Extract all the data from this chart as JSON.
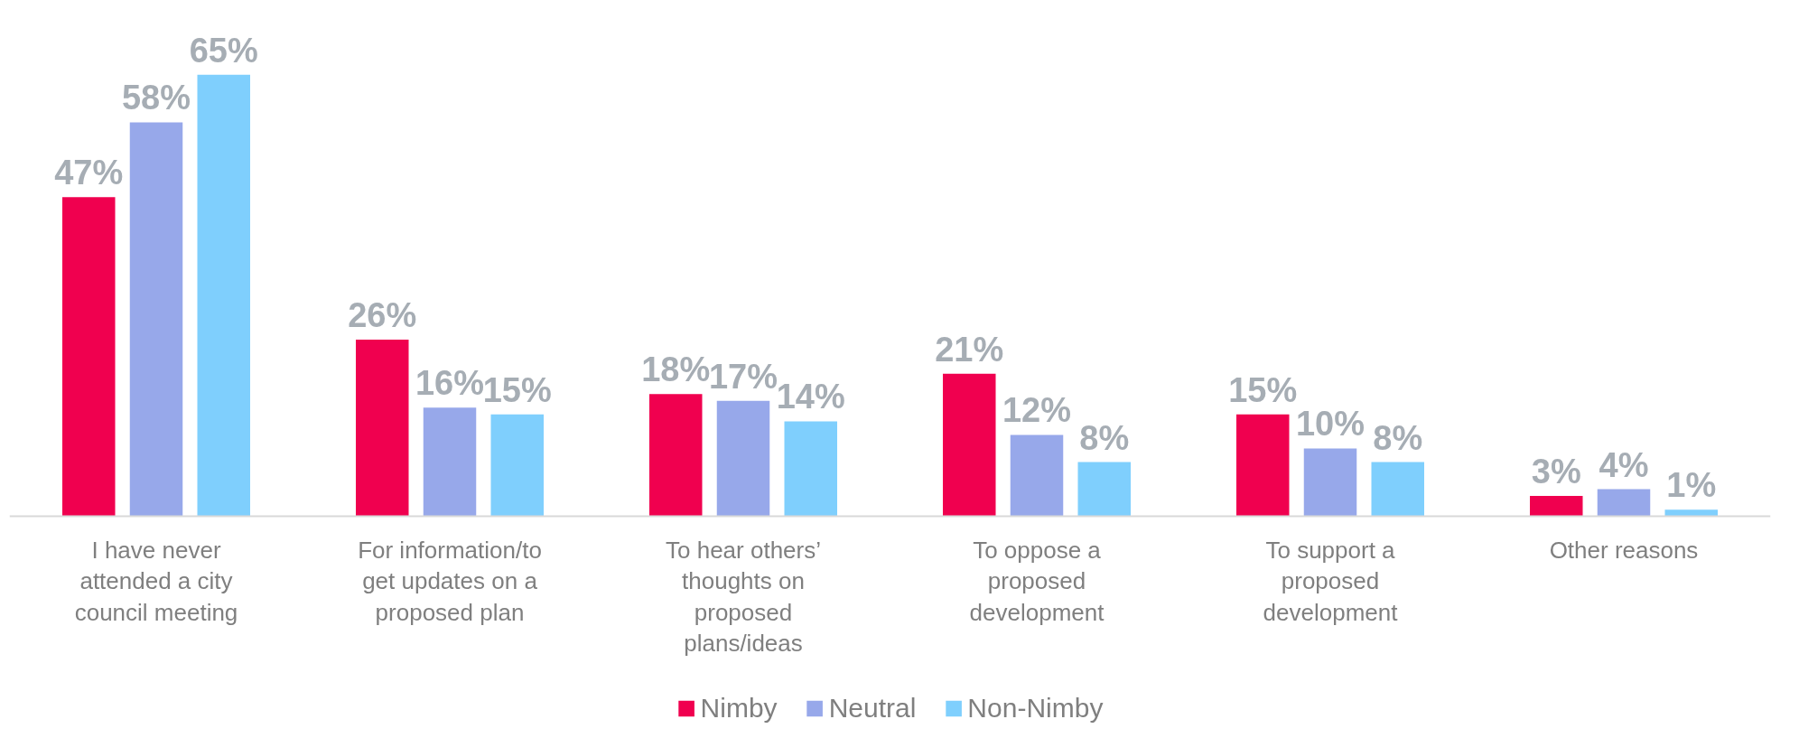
{
  "chart_data": {
    "type": "bar",
    "categories": [
      "I have never attended a city council meeting",
      "For information/to get updates on a proposed plan",
      "To hear others’ thoughts on proposed plans/ideas",
      "To oppose a proposed development",
      "To support a proposed development",
      "Other reasons"
    ],
    "series": [
      {
        "name": "Nimby",
        "color": "#f0004f",
        "values": [
          47,
          26,
          18,
          21,
          15,
          3
        ],
        "value_labels": [
          "47%",
          "26%",
          "18%",
          "21%",
          "15%",
          "3%"
        ]
      },
      {
        "name": "Neutral",
        "color": "#97a8ea",
        "values": [
          58,
          16,
          17,
          12,
          10,
          4
        ],
        "value_labels": [
          "58%",
          "16%",
          "17%",
          "12%",
          "10%",
          "4%"
        ]
      },
      {
        "name": "Non-Nimby",
        "color": "#7fcffd",
        "values": [
          65,
          15,
          14,
          8,
          8,
          1
        ],
        "value_labels": [
          "65%",
          "15%",
          "14%",
          "8%",
          "8%",
          "1%"
        ]
      }
    ],
    "legend": "bottom",
    "grid": false
  }
}
